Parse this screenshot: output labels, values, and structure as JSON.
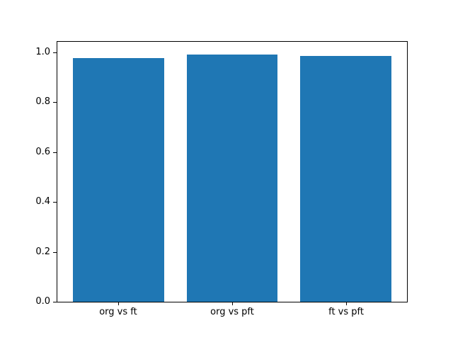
{
  "figure": {
    "background": "#ffffff"
  },
  "chart_data": {
    "type": "bar",
    "title": "",
    "xlabel": "",
    "ylabel": "",
    "categories": [
      "org vs ft",
      "org vs pft",
      "ft vs pft"
    ],
    "values": [
      0.982,
      0.998,
      0.99
    ],
    "bar_color": "#1f77b4",
    "axis_color": "#000000",
    "bar_width_fraction": 0.8,
    "xlim": [
      -0.54,
      2.54
    ],
    "ylim": [
      0.0,
      1.0485
    ],
    "yticks": [
      0.0,
      0.2,
      0.4,
      0.6,
      0.8,
      1.0
    ],
    "ytick_labels": [
      "0.0",
      "0.2",
      "0.4",
      "0.6",
      "0.8",
      "1.0"
    ],
    "grid": false,
    "legend_position": "none"
  }
}
